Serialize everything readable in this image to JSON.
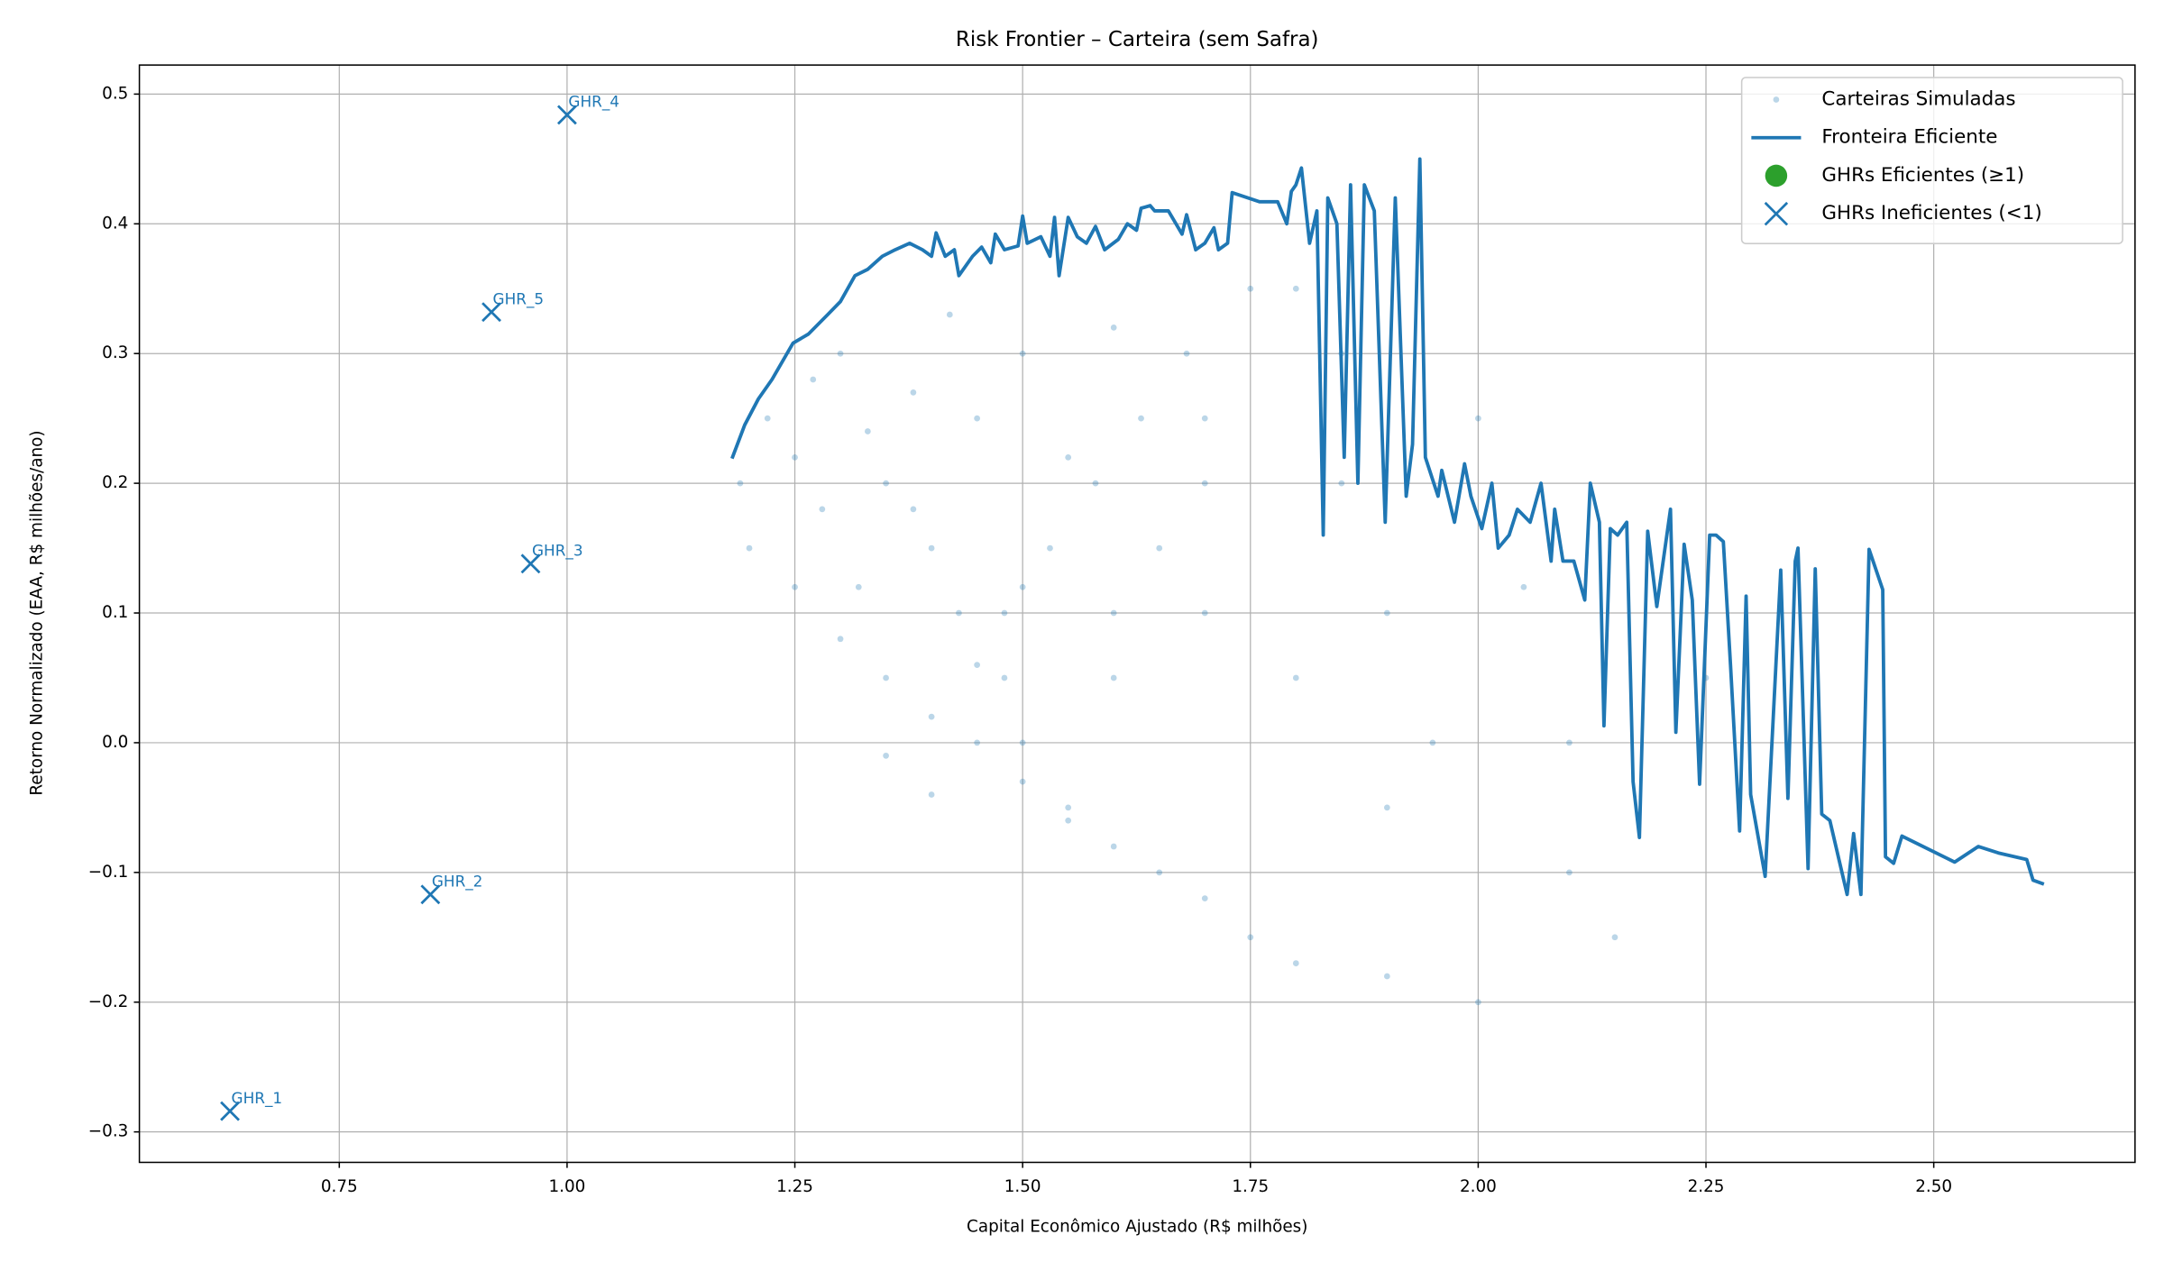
{
  "chart_data": {
    "type": "scatter",
    "title": "Risk Frontier – Carteira (sem Safra)",
    "x_label": "Capital Econômico Ajustado (R$ milhões)",
    "y_label": "Retorno Normalizado (EAA, R$ milhões/ano)",
    "xlim": [
      0.5306,
      2.7209
    ],
    "ylim": [
      -0.3235,
      0.5224
    ],
    "xticks": [
      {
        "value": 0.75,
        "label": "0.75"
      },
      {
        "value": 1.0,
        "label": "1.00"
      },
      {
        "value": 1.25,
        "label": "1.25"
      },
      {
        "value": 1.5,
        "label": "1.50"
      },
      {
        "value": 1.75,
        "label": "1.75"
      },
      {
        "value": 2.0,
        "label": "2.00"
      },
      {
        "value": 2.25,
        "label": "2.25"
      },
      {
        "value": 2.5,
        "label": "2.50"
      }
    ],
    "yticks": [
      {
        "value": -0.3,
        "label": "−0.3"
      },
      {
        "value": -0.2,
        "label": "−0.2"
      },
      {
        "value": -0.1,
        "label": "−0.1"
      },
      {
        "value": 0.0,
        "label": "0.0"
      },
      0.1,
      0.2,
      0.3,
      0.4,
      0.5
    ],
    "grid": true,
    "legend": "upper right",
    "series": [
      {
        "name": "Carteiras Simuladas",
        "kind": "scatter",
        "color": "#1f77b4",
        "x": [
          1.19,
          1.2,
          1.22,
          1.25,
          1.28,
          1.3,
          1.32,
          1.35,
          1.38,
          1.4,
          1.42,
          1.45,
          1.48,
          1.5,
          1.25,
          1.3,
          1.35,
          1.4,
          1.45,
          1.5,
          1.55,
          1.6,
          1.27,
          1.33,
          1.38,
          1.43,
          1.48,
          1.53,
          1.58,
          1.63,
          1.68,
          1.35,
          1.4,
          1.45,
          1.5,
          1.55,
          1.6,
          1.65,
          1.7,
          1.75,
          1.5,
          1.55,
          1.6,
          1.65,
          1.7,
          1.75,
          1.8,
          1.85,
          1.9,
          1.6,
          1.7,
          1.8,
          1.9,
          2.0,
          2.1,
          1.85,
          1.95,
          2.05,
          2.15,
          2.25,
          1.7,
          1.8,
          1.9,
          2.0,
          2.1
        ],
        "y": [
          0.2,
          0.15,
          0.25,
          0.22,
          0.18,
          0.3,
          0.12,
          0.2,
          0.27,
          0.15,
          0.33,
          0.25,
          0.1,
          0.3,
          0.12,
          0.08,
          0.05,
          0.02,
          0.0,
          -0.03,
          -0.05,
          -0.08,
          0.28,
          0.24,
          0.18,
          0.1,
          0.05,
          0.15,
          0.2,
          0.25,
          0.3,
          -0.01,
          -0.04,
          0.06,
          0.12,
          0.22,
          0.1,
          -0.1,
          -0.12,
          0.35,
          0.0,
          -0.06,
          0.05,
          0.15,
          0.1,
          -0.15,
          0.05,
          0.2,
          -0.05,
          0.32,
          0.25,
          -0.17,
          0.1,
          -0.2,
          -0.1,
          0.3,
          0.0,
          0.12,
          -0.15,
          0.05,
          0.2,
          0.35,
          -0.18,
          0.25,
          0.0
        ]
      },
      {
        "name": "Fronteira Eficiente",
        "kind": "line",
        "color": "#1f77b4",
        "x": [
          1.181,
          1.195,
          1.21,
          1.225,
          1.248,
          1.265,
          1.286,
          1.3,
          1.316,
          1.33,
          1.346,
          1.36,
          1.376,
          1.39,
          1.4,
          1.405,
          1.415,
          1.425,
          1.43,
          1.445,
          1.455,
          1.465,
          1.47,
          1.48,
          1.495,
          1.5,
          1.505,
          1.52,
          1.53,
          1.535,
          1.54,
          1.55,
          1.56,
          1.57,
          1.58,
          1.59,
          1.605,
          1.615,
          1.625,
          1.63,
          1.64,
          1.645,
          1.66,
          1.675,
          1.68,
          1.69,
          1.7,
          1.71,
          1.715,
          1.725,
          1.73,
          1.76,
          1.78,
          1.79,
          1.795,
          1.8,
          1.806,
          1.815,
          1.823,
          1.83,
          1.835,
          1.845,
          1.853,
          1.86,
          1.868,
          1.875,
          1.886,
          1.898,
          1.909,
          1.921,
          1.928,
          1.936,
          1.942,
          1.956,
          1.96,
          1.974,
          1.985,
          1.992,
          2.004,
          2.015,
          2.022,
          2.034,
          2.043,
          2.057,
          2.069,
          2.08,
          2.084,
          2.093,
          2.105,
          2.117,
          2.123,
          2.133,
          2.138,
          2.145,
          2.153,
          2.163,
          2.17,
          2.177,
          2.186,
          2.196,
          2.211,
          2.217,
          2.226,
          2.235,
          2.243,
          2.254,
          2.261,
          2.269,
          2.277,
          2.287,
          2.294,
          2.299,
          2.315,
          2.332,
          2.34,
          2.348,
          2.351,
          2.362,
          2.37,
          2.377,
          2.386,
          2.405,
          2.412,
          2.42,
          2.429,
          2.444,
          2.447,
          2.456,
          2.465,
          2.523,
          2.549,
          2.571,
          2.602,
          2.609,
          2.621
        ],
        "y": [
          0.219,
          0.245,
          0.265,
          0.28,
          0.308,
          0.315,
          0.33,
          0.34,
          0.36,
          0.365,
          0.375,
          0.38,
          0.385,
          0.38,
          0.375,
          0.393,
          0.375,
          0.38,
          0.36,
          0.375,
          0.382,
          0.37,
          0.392,
          0.38,
          0.383,
          0.406,
          0.385,
          0.39,
          0.375,
          0.405,
          0.36,
          0.405,
          0.39,
          0.385,
          0.398,
          0.38,
          0.388,
          0.4,
          0.395,
          0.412,
          0.414,
          0.41,
          0.41,
          0.392,
          0.407,
          0.38,
          0.385,
          0.397,
          0.38,
          0.385,
          0.424,
          0.417,
          0.417,
          0.4,
          0.425,
          0.43,
          0.443,
          0.385,
          0.41,
          0.16,
          0.42,
          0.4,
          0.22,
          0.43,
          0.2,
          0.43,
          0.41,
          0.17,
          0.42,
          0.19,
          0.23,
          0.45,
          0.22,
          0.19,
          0.21,
          0.17,
          0.215,
          0.19,
          0.165,
          0.2,
          0.15,
          0.16,
          0.18,
          0.17,
          0.2,
          0.14,
          0.18,
          0.14,
          0.14,
          0.11,
          0.2,
          0.17,
          0.013,
          0.165,
          0.16,
          0.17,
          -0.03,
          -0.073,
          0.163,
          0.105,
          0.18,
          0.008,
          0.153,
          0.11,
          -0.032,
          0.16,
          0.16,
          0.155,
          0.06,
          -0.068,
          0.113,
          -0.04,
          -0.103,
          0.133,
          -0.043,
          0.14,
          0.15,
          -0.097,
          0.134,
          -0.055,
          -0.06,
          -0.117,
          -0.07,
          -0.117,
          0.149,
          0.118,
          -0.088,
          -0.093,
          -0.072,
          -0.092,
          -0.08,
          -0.085,
          -0.09,
          -0.106,
          -0.109
        ]
      },
      {
        "name": "GHRs Eficientes (≥1)",
        "kind": "dot",
        "color": "#2ca02c",
        "x": [],
        "y": [],
        "labels": []
      },
      {
        "name": "GHRs Ineficientes (<1)",
        "kind": "cross",
        "color": "#1f77b4",
        "x": [
          0.63,
          0.85,
          0.96,
          1.0,
          0.917
        ],
        "y": [
          -0.284,
          -0.117,
          0.138,
          0.484,
          0.332
        ],
        "labels": [
          "GHR_1",
          "GHR_2",
          "GHR_3",
          "GHR_4",
          "GHR_5"
        ]
      }
    ]
  }
}
